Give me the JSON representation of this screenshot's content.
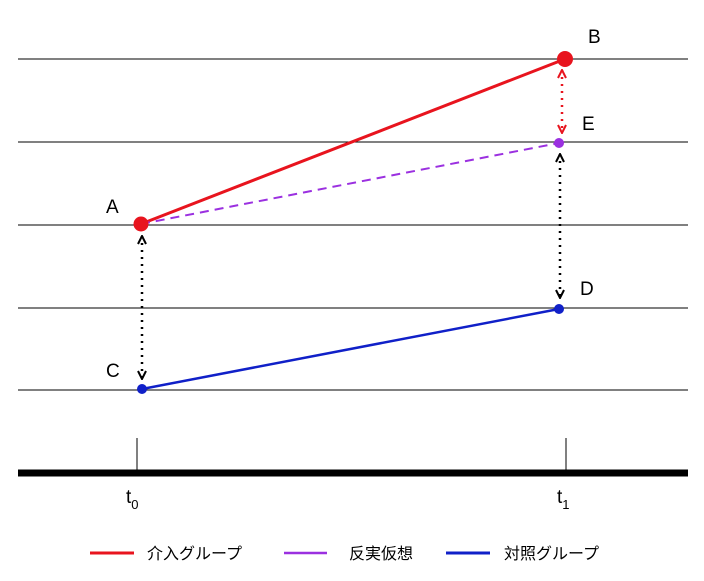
{
  "nodes": [
    {
      "id": "A",
      "label": "A"
    },
    {
      "id": "B",
      "label": "B"
    },
    {
      "id": "C",
      "label": "C"
    },
    {
      "id": "D",
      "label": "D"
    },
    {
      "id": "E",
      "label": "E"
    }
  ],
  "time_axis": [
    {
      "base": "t",
      "sub": "0"
    },
    {
      "base": "t",
      "sub": "1"
    }
  ],
  "legend": [
    "介入グループ",
    "反実仮想",
    "対照グループ"
  ]
}
